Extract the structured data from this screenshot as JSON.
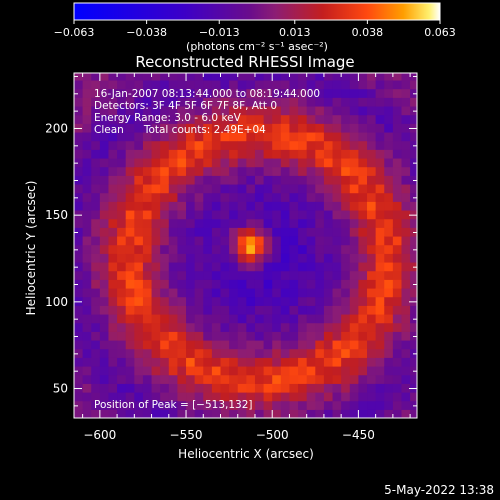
{
  "chart_data": {
    "type": "heatmap",
    "title": "Reconstructed RHESSI Image",
    "xlabel": "Heliocentric X (arcsec)",
    "ylabel": "Heliocentric Y (arcsec)",
    "xlim": [
      -615,
      -416
    ],
    "ylim": [
      33,
      232
    ],
    "x_ticks": [
      -600,
      -550,
      -500,
      -450
    ],
    "y_ticks": [
      50,
      100,
      150,
      200
    ],
    "x_tick_labels": [
      "−600",
      "−550",
      "−500",
      "−450"
    ],
    "y_tick_labels": [
      "50",
      "100",
      "150",
      "200"
    ],
    "colorbar": {
      "min": -0.063,
      "max": 0.063,
      "ticks": [
        -0.063,
        -0.038,
        -0.013,
        0.013,
        0.038,
        0.063
      ],
      "tick_labels": [
        "−0.063",
        "−0.038",
        "−0.013",
        "0.013",
        "0.038",
        "0.063"
      ],
      "units_label": "(photons cm⁻² s⁻¹ asec⁻²)"
    },
    "annotations": [
      "16-Jan-2007 08:13:44.000 to 08:19:44.000",
      "Detectors: 3F 4F 5F 6F 7F 8F, Att 0",
      "Energy Range: 3.0 - 6.0 keV",
      "Clean      Total counts: 2.49E+04"
    ],
    "peak_label": "Position of Peak = [−513,132]",
    "peak": {
      "x": -513,
      "y": 132,
      "value": 0.063
    },
    "ring": {
      "center_x": -508,
      "center_y": 126,
      "radius": 74,
      "value": 0.03
    },
    "trough_value": -0.025,
    "grid": false,
    "colors": [
      "#0000ff",
      "#3c00c8",
      "#6a0c8c",
      "#8c1d74",
      "#c41e1e",
      "#ff4810",
      "#ff9e00",
      "#fff06e",
      "#ffffff"
    ]
  },
  "timestamp": "5-May-2022 13:38"
}
